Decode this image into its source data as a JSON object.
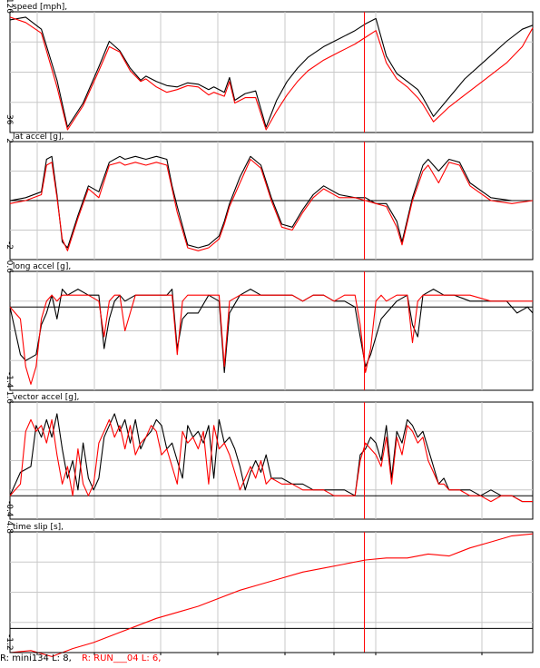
{
  "colors": {
    "run_a": "#000000",
    "run_b": "#ff0000",
    "grid": "#c8c8c8",
    "cursor": "#ff0000",
    "frame": "#000000"
  },
  "footer": {
    "left": "R: mini134  L: 8,",
    "right": "R: RUN___04  L: 6,"
  },
  "chart_data": [
    {
      "type": "line",
      "title": "speed [mph],",
      "ylim": [
        36,
        126
      ],
      "yticks": [
        "126",
        "36"
      ],
      "xlim": [
        0,
        100
      ],
      "cursor_x": 67.8,
      "series": [
        {
          "color": "#000000",
          "x": [
            0,
            3,
            6,
            9,
            11,
            14,
            17,
            19,
            21,
            23,
            25,
            26,
            28,
            30,
            32,
            34,
            36,
            38,
            39,
            41,
            42,
            43,
            45,
            47,
            49,
            51,
            53,
            55,
            57,
            60,
            63,
            66,
            68,
            70,
            72,
            74,
            76,
            78,
            79,
            81,
            84,
            87,
            91,
            95,
            98,
            100
          ],
          "y": [
            120,
            122,
            113,
            75,
            40,
            58,
            85,
            104,
            97,
            84,
            75,
            78,
            74,
            71,
            70,
            73,
            72,
            68,
            70,
            66,
            77,
            60,
            65,
            67,
            40,
            60,
            74,
            84,
            92,
            100,
            106,
            112,
            117,
            121,
            93,
            80,
            74,
            68,
            62,
            48,
            62,
            76,
            90,
            104,
            113,
            116
          ]
        },
        {
          "color": "#ff0000",
          "x": [
            0,
            3,
            6,
            9,
            11,
            14,
            17,
            19,
            21,
            23,
            25,
            26,
            28,
            30,
            32,
            34,
            36,
            38,
            39,
            41,
            42,
            43,
            45,
            47,
            49,
            51,
            53,
            55,
            57,
            60,
            63,
            66,
            68,
            70,
            72,
            74,
            76,
            78,
            79,
            81,
            84,
            87,
            91,
            95,
            98,
            100
          ],
          "y": [
            122,
            118,
            110,
            70,
            38,
            56,
            82,
            100,
            96,
            82,
            74,
            76,
            70,
            66,
            68,
            71,
            70,
            64,
            66,
            63,
            74,
            58,
            62,
            62,
            38,
            52,
            64,
            74,
            82,
            90,
            96,
            102,
            107,
            112,
            88,
            76,
            70,
            62,
            57,
            44,
            55,
            64,
            76,
            88,
            100,
            114
          ]
        }
      ]
    },
    {
      "type": "line",
      "title": "lat accel [g],",
      "ylim": [
        -2,
        2
      ],
      "yticks": [
        "2",
        "-2"
      ],
      "xlim": [
        0,
        100
      ],
      "cursor_x": 67.8,
      "series": [
        {
          "color": "#000000",
          "x": [
            0,
            3,
            6,
            7,
            8,
            9,
            10,
            11,
            13,
            15,
            17,
            19,
            21,
            22,
            24,
            26,
            28,
            30,
            31,
            32,
            34,
            36,
            38,
            40,
            41,
            42,
            44,
            46,
            48,
            50,
            52,
            54,
            56,
            58,
            60,
            63,
            66,
            68,
            70,
            72,
            74,
            75,
            77,
            79,
            80,
            82,
            84,
            86,
            88,
            92,
            96,
            100
          ],
          "y": [
            0,
            0.1,
            0.3,
            1.4,
            1.5,
            0.2,
            -1.4,
            -1.6,
            -0.5,
            0.5,
            0.3,
            1.3,
            1.5,
            1.4,
            1.5,
            1.4,
            1.5,
            1.4,
            0.5,
            -0.2,
            -1.5,
            -1.6,
            -1.5,
            -1.2,
            -0.7,
            -0.1,
            0.8,
            1.5,
            1.2,
            0.1,
            -0.8,
            -0.9,
            -0.3,
            0.2,
            0.5,
            0.2,
            0.1,
            0.1,
            -0.1,
            -0.1,
            -0.7,
            -1.4,
            0.1,
            1.2,
            1.4,
            1.0,
            1.4,
            1.3,
            0.6,
            0.1,
            0,
            0
          ]
        },
        {
          "color": "#ff0000",
          "x": [
            0,
            3,
            6,
            7,
            8,
            9,
            10,
            11,
            13,
            15,
            17,
            19,
            21,
            22,
            24,
            26,
            28,
            30,
            31,
            32,
            34,
            36,
            38,
            40,
            41,
            42,
            44,
            46,
            48,
            50,
            52,
            54,
            56,
            58,
            60,
            63,
            66,
            68,
            70,
            72,
            74,
            75,
            77,
            79,
            80,
            82,
            84,
            86,
            88,
            92,
            96,
            100
          ],
          "y": [
            -0.1,
            0,
            0.2,
            1.2,
            1.3,
            0.1,
            -1.3,
            -1.7,
            -0.6,
            0.4,
            0.1,
            1.2,
            1.3,
            1.2,
            1.3,
            1.2,
            1.3,
            1.2,
            0.4,
            -0.4,
            -1.6,
            -1.7,
            -1.6,
            -1.3,
            -0.8,
            -0.2,
            0.6,
            1.4,
            1.1,
            0,
            -0.9,
            -1.0,
            -0.4,
            0.1,
            0.4,
            0.1,
            0.1,
            0,
            -0.1,
            -0.2,
            -0.9,
            -1.5,
            0,
            1.0,
            1.2,
            0.6,
            1.3,
            1.2,
            0.5,
            0,
            -0.1,
            0
          ]
        }
      ]
    },
    {
      "type": "line",
      "title": "long accel [g],",
      "ylim": [
        -1.4,
        0.6
      ],
      "yticks": [
        "0.6",
        "-1.4"
      ],
      "xlim": [
        0,
        100
      ],
      "cursor_x": 67.8,
      "series": [
        {
          "color": "#000000",
          "x": [
            0,
            2,
            3,
            5,
            6,
            7,
            8,
            9,
            10,
            11,
            13,
            15,
            17,
            18,
            19,
            20,
            21,
            22,
            24,
            26,
            28,
            30,
            31,
            32,
            33,
            34,
            36,
            38,
            40,
            41,
            42,
            44,
            46,
            48,
            50,
            52,
            54,
            56,
            58,
            60,
            62,
            64,
            66,
            67,
            68,
            69,
            70,
            71,
            72,
            74,
            76,
            77,
            78,
            79,
            81,
            83,
            85,
            88,
            92,
            95,
            97,
            99,
            100
          ],
          "y": [
            0,
            -0.8,
            -0.9,
            -0.8,
            -0.3,
            -0.1,
            0.2,
            -0.2,
            0.3,
            0.2,
            0.3,
            0.2,
            0.2,
            -0.7,
            -0.2,
            0.1,
            0.2,
            0.1,
            0.2,
            0.2,
            0.2,
            0.2,
            0.3,
            -0.7,
            -0.2,
            -0.1,
            -0.1,
            0.2,
            0.1,
            -1.1,
            -0.1,
            0.2,
            0.3,
            0.2,
            0.2,
            0.2,
            0.2,
            0.1,
            0.2,
            0.2,
            0.1,
            0.1,
            0,
            -0.5,
            -1.0,
            -0.8,
            -0.5,
            -0.2,
            -0.1,
            0.1,
            0.2,
            -0.3,
            -0.5,
            0.2,
            0.3,
            0.2,
            0.2,
            0.1,
            0.1,
            0.1,
            -0.1,
            0,
            -0.1
          ]
        },
        {
          "color": "#ff0000",
          "x": [
            0,
            2,
            3,
            4,
            5,
            6,
            7,
            8,
            9,
            10,
            11,
            13,
            15,
            17,
            18,
            19,
            20,
            21,
            22,
            24,
            26,
            28,
            30,
            31,
            32,
            33,
            34,
            36,
            38,
            40,
            41,
            42,
            44,
            46,
            48,
            50,
            52,
            54,
            56,
            58,
            60,
            62,
            64,
            66,
            67,
            68,
            69,
            70,
            71,
            72,
            74,
            76,
            77,
            78,
            79,
            81,
            83,
            85,
            88,
            92,
            95,
            97,
            99,
            100
          ],
          "y": [
            0,
            -0.2,
            -1.0,
            -1.3,
            -1.0,
            -0.2,
            0.1,
            0.2,
            0.1,
            0.2,
            0.2,
            0.2,
            0.2,
            0.1,
            -0.5,
            0.1,
            0.2,
            0.2,
            -0.4,
            0.2,
            0.2,
            0.2,
            0.2,
            0.2,
            -0.8,
            0.1,
            0.2,
            0.2,
            0.2,
            0.2,
            -1.0,
            0.1,
            0.2,
            0.2,
            0.2,
            0.2,
            0.2,
            0.2,
            0.1,
            0.2,
            0.2,
            0.1,
            0.2,
            0.2,
            -0.3,
            -1.1,
            -0.7,
            0.1,
            0.2,
            0.1,
            0.2,
            0.2,
            -0.6,
            0.1,
            0.2,
            0.2,
            0.2,
            0.2,
            0.2,
            0.1,
            0.1,
            0.1,
            0.1,
            0.1
          ]
        }
      ]
    },
    {
      "type": "line",
      "title": "vector accel [g],",
      "ylim": [
        -0.4,
        1.6
      ],
      "yticks": [
        "1.6",
        "-0.4"
      ],
      "xlim": [
        0,
        100
      ],
      "cursor_x": 67.8,
      "series": [
        {
          "color": "#000000",
          "x": [
            0,
            2,
            4,
            5,
            6,
            7,
            8,
            9,
            10,
            11,
            12,
            13,
            14,
            15,
            16,
            17,
            18,
            19,
            20,
            21,
            22,
            23,
            24,
            25,
            26,
            27,
            28,
            29,
            30,
            31,
            32,
            33,
            34,
            35,
            36,
            37,
            38,
            39,
            40,
            41,
            42,
            43,
            44,
            45,
            46,
            47,
            48,
            49,
            50,
            52,
            54,
            56,
            58,
            60,
            62,
            64,
            66,
            67,
            68,
            69,
            70,
            71,
            72,
            73,
            74,
            75,
            76,
            77,
            78,
            79,
            80,
            81,
            82,
            83,
            84,
            86,
            88,
            90,
            92,
            94,
            96,
            98,
            100
          ],
          "y": [
            0,
            0.4,
            0.5,
            1.2,
            1.0,
            1.3,
            1.0,
            1.4,
            0.8,
            0.3,
            0.6,
            0.1,
            0.9,
            0.3,
            0.1,
            0.3,
            1.0,
            1.2,
            1.4,
            1.1,
            1.3,
            0.9,
            1.3,
            0.8,
            1.0,
            1.1,
            1.3,
            1.2,
            0.8,
            0.9,
            0.6,
            0.3,
            1.2,
            1.0,
            1.1,
            0.9,
            1.2,
            0.3,
            1.3,
            0.9,
            1.0,
            0.8,
            0.5,
            0.1,
            0.4,
            0.6,
            0.4,
            0.7,
            0.3,
            0.3,
            0.2,
            0.2,
            0.1,
            0.1,
            0.1,
            0.1,
            0,
            0.7,
            0.8,
            1.0,
            0.9,
            0.6,
            1.2,
            0.3,
            1.1,
            0.9,
            1.3,
            1.2,
            1.0,
            1.1,
            0.8,
            0.5,
            0.2,
            0.3,
            0.1,
            0.1,
            0.1,
            0,
            0.1,
            0,
            0,
            -0.1,
            -0.1
          ]
        },
        {
          "color": "#ff0000",
          "x": [
            0,
            2,
            3,
            4,
            5,
            6,
            7,
            8,
            9,
            10,
            11,
            12,
            13,
            14,
            15,
            16,
            17,
            18,
            19,
            20,
            21,
            22,
            23,
            24,
            25,
            26,
            27,
            28,
            29,
            30,
            31,
            32,
            33,
            34,
            35,
            36,
            37,
            38,
            39,
            40,
            41,
            42,
            43,
            44,
            45,
            46,
            47,
            48,
            49,
            50,
            52,
            54,
            56,
            58,
            60,
            62,
            64,
            66,
            67,
            68,
            69,
            70,
            71,
            72,
            73,
            74,
            75,
            76,
            77,
            78,
            79,
            80,
            81,
            82,
            83,
            84,
            86,
            88,
            90,
            92,
            94,
            96,
            98,
            100
          ],
          "y": [
            0,
            0.2,
            1.1,
            1.3,
            1.1,
            1.2,
            0.9,
            1.3,
            0.7,
            0.2,
            0.5,
            0,
            0.8,
            0.2,
            0,
            0.2,
            0.9,
            1.1,
            1.3,
            1.0,
            1.2,
            0.8,
            1.2,
            0.7,
            0.9,
            1.0,
            1.2,
            1.1,
            0.7,
            0.8,
            0.5,
            0.2,
            1.1,
            0.9,
            1.0,
            0.8,
            1.1,
            0.2,
            1.2,
            0.8,
            0.9,
            0.7,
            0.4,
            0.1,
            0.3,
            0.5,
            0.3,
            0.6,
            0.2,
            0.3,
            0.2,
            0.2,
            0.1,
            0.1,
            0.1,
            0,
            0,
            0,
            0.6,
            0.9,
            0.8,
            0.7,
            0.5,
            1.0,
            0.2,
            1.0,
            0.7,
            1.2,
            1.1,
            0.9,
            1.0,
            0.6,
            0.4,
            0.2,
            0.2,
            0.1,
            0.1,
            0,
            0,
            -0.1,
            0,
            0,
            -0.1,
            -0.1
          ]
        }
      ]
    },
    {
      "type": "line",
      "title": "time slip [s],",
      "ylim": [
        -1.2,
        4.8
      ],
      "yticks": [
        "4.8",
        "-1.2"
      ],
      "xlim": [
        0,
        100
      ],
      "cursor_x": 67.8,
      "series": [
        {
          "color": "#ff0000",
          "x": [
            0,
            4,
            8,
            12,
            16,
            20,
            24,
            28,
            32,
            36,
            40,
            44,
            48,
            52,
            56,
            60,
            64,
            68,
            72,
            76,
            80,
            84,
            88,
            92,
            96,
            100
          ],
          "y": [
            -1.2,
            -1.1,
            -1.4,
            -1.0,
            -0.7,
            -0.3,
            0.1,
            0.5,
            0.8,
            1.1,
            1.5,
            1.9,
            2.2,
            2.5,
            2.8,
            3.0,
            3.2,
            3.4,
            3.5,
            3.5,
            3.7,
            3.6,
            4.0,
            4.3,
            4.6,
            4.7
          ]
        }
      ]
    }
  ]
}
